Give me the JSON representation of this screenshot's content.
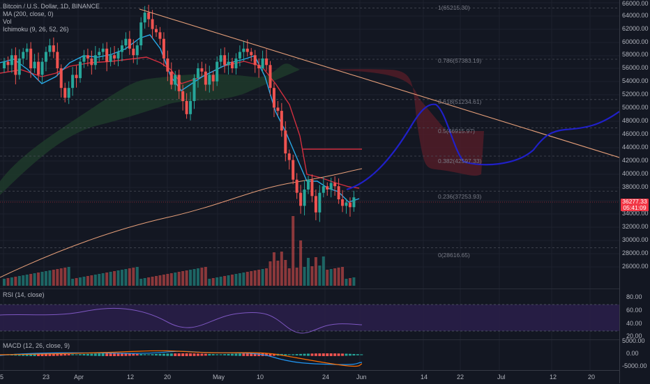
{
  "main": {
    "symbol_title": "Bitcoin / U.S. Dollar, 1D, BINANCE",
    "ma_label": "MA (200, close, 0)",
    "vol_label": "Vol",
    "ichimoku_label": "Ichimoku (9, 26, 52, 26)"
  },
  "price_axis": {
    "ticks": [
      "66000.00",
      "64000.00",
      "62000.00",
      "60000.00",
      "58000.00",
      "56000.00",
      "54000.00",
      "52000.00",
      "50000.00",
      "48000.00",
      "46000.00",
      "44000.00",
      "42000.00",
      "40000.00",
      "38000.00",
      "34000.00",
      "32000.00",
      "30000.00",
      "28000.00",
      "26000.00"
    ],
    "last_price": "36277.33",
    "countdown": "05:41:09",
    "last_price_color": "#f23645"
  },
  "fib_levels": [
    {
      "label": "1(65215.30)",
      "value": 65215.3
    },
    {
      "label": "0.786(57383.19)",
      "value": 57383.19
    },
    {
      "label": "0.618(51234.61)",
      "value": 51234.61
    },
    {
      "label": "0.5(46915.97)",
      "value": 46915.97
    },
    {
      "label": "0.382(42597.33)",
      "value": 42597.33
    },
    {
      "label": "0.236(37253.93)",
      "value": 37253.93
    },
    {
      "label": "0(28616.65)",
      "value": 28616.65
    }
  ],
  "rsi": {
    "label": "RSI (14, close)",
    "ticks": [
      "80.00",
      "60.00",
      "40.00",
      "20.00"
    ]
  },
  "macd": {
    "label": "MACD (12, 26, close, 9)",
    "ticks": [
      "5000.00",
      "0.00",
      "-5000.00"
    ]
  },
  "time_axis": {
    "labels": [
      "5",
      "23",
      "Apr",
      "12",
      "20",
      "May",
      "10",
      "24",
      "Jun",
      "14",
      "22",
      "Jul",
      "12",
      "20"
    ]
  },
  "colors": {
    "up": "#26a69a",
    "down": "#ef5350",
    "projection": "#1e1ec8",
    "trendline": "#e8a07a"
  }
}
